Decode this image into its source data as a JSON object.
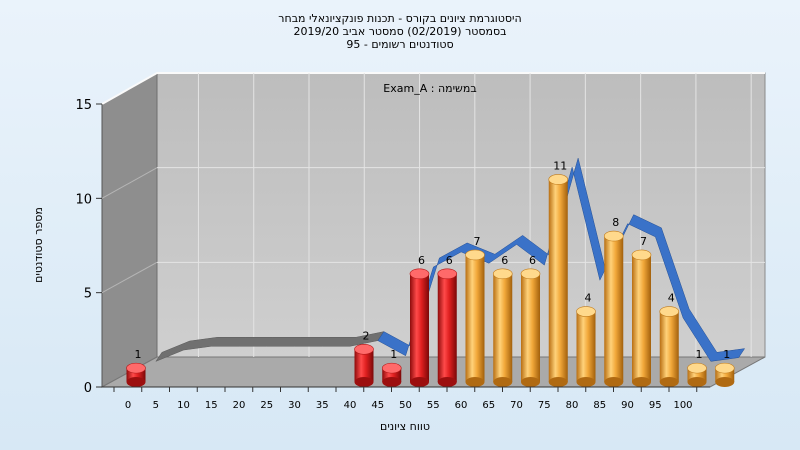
{
  "chart_data": {
    "type": "bar",
    "title_lines": [
      "היסטוגרמת ציונים בקורס - תכנות פונקציונאלי מבחר",
      "בסמסטר  (02/2019)  סמסטר אביב 2019/20",
      "95 - סטודנטים רשומים"
    ],
    "annotation": "Exam_A : במשימה",
    "xlabel": "טווח ציונים",
    "ylabel": "מספר סטודנטים",
    "ylim": [
      0,
      15
    ],
    "yticks": [
      0,
      5,
      10,
      15
    ],
    "xticks": [
      0,
      5,
      10,
      15,
      20,
      25,
      30,
      35,
      40,
      45,
      50,
      55,
      60,
      65,
      70,
      75,
      80,
      85,
      90,
      95,
      100
    ],
    "bars": [
      {
        "x": 0,
        "value": 1,
        "group": "fail"
      },
      {
        "x": 40,
        "value": 2,
        "group": "fail"
      },
      {
        "x": 45,
        "value": 1,
        "group": "fail"
      },
      {
        "x": 50,
        "value": 6,
        "group": "fail"
      },
      {
        "x": 55,
        "value": 6,
        "group": "fail"
      },
      {
        "x": 60,
        "value": 7,
        "group": "pass"
      },
      {
        "x": 65,
        "value": 6,
        "group": "pass"
      },
      {
        "x": 70,
        "value": 6,
        "group": "pass"
      },
      {
        "x": 75,
        "value": 11,
        "group": "pass"
      },
      {
        "x": 80,
        "value": 4,
        "group": "pass"
      },
      {
        "x": 85,
        "value": 8,
        "group": "pass"
      },
      {
        "x": 90,
        "value": 7,
        "group": "pass"
      },
      {
        "x": 95,
        "value": 4,
        "group": "pass"
      },
      {
        "x": 100,
        "value": 1,
        "group": "pass"
      },
      {
        "x": 105,
        "value": 1,
        "group": "pass"
      }
    ],
    "trend_ribbon": [
      {
        "x": 5,
        "y": 1.2
      },
      {
        "x": 10,
        "y": 1.8
      },
      {
        "x": 15,
        "y": 2.0
      },
      {
        "x": 20,
        "y": 2.0
      },
      {
        "x": 25,
        "y": 2.0
      },
      {
        "x": 30,
        "y": 2.0
      },
      {
        "x": 35,
        "y": 2.0
      },
      {
        "x": 40,
        "y": 2.0
      },
      {
        "x": 45,
        "y": 2.3
      },
      {
        "x": 50,
        "y": 1.5
      },
      {
        "x": 55,
        "y": 6.2
      },
      {
        "x": 60,
        "y": 7.0
      },
      {
        "x": 65,
        "y": 6.4
      },
      {
        "x": 70,
        "y": 7.4
      },
      {
        "x": 75,
        "y": 6.3
      },
      {
        "x": 80,
        "y": 11.5
      },
      {
        "x": 85,
        "y": 5.5
      },
      {
        "x": 90,
        "y": 8.5
      },
      {
        "x": 95,
        "y": 7.8
      },
      {
        "x": 100,
        "y": 3.5
      },
      {
        "x": 105,
        "y": 1.2
      },
      {
        "x": 110,
        "y": 1.4
      }
    ],
    "grid": true,
    "colors": {
      "fail_bar": "#e02020",
      "pass_bar": "#f2a83a",
      "ribbon_pass": "#3a72c8",
      "ribbon_fail": "#707070",
      "back_wall": "#c4c4c4",
      "side_wall": "#8e8e8e",
      "floor": "#aaaaaa"
    }
  }
}
